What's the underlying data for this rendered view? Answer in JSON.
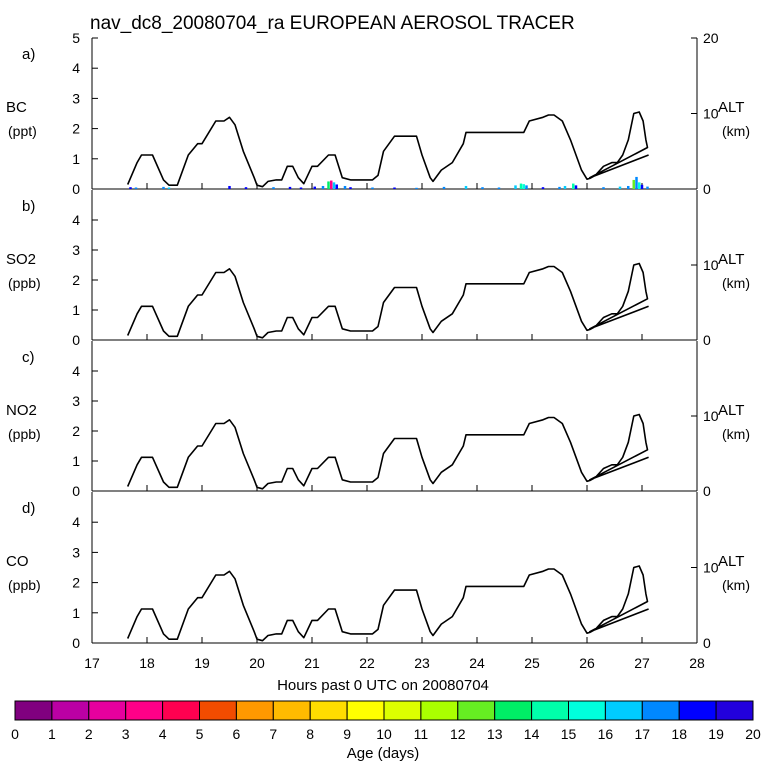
{
  "title": "nav_dc8_20080704_ra EUROPEAN AEROSOL TRACER",
  "x_axis": {
    "label": "Hours past 0 UTC on 20080704",
    "range": [
      17,
      28
    ],
    "ticks": [
      "17",
      "18",
      "19",
      "20",
      "21",
      "22",
      "23",
      "24",
      "25",
      "26",
      "27",
      "28"
    ]
  },
  "right_axis": {
    "label_top": "ALT",
    "label_bottom": "(km)",
    "range": [
      0,
      20
    ],
    "ticks": [
      "0",
      "10",
      "20"
    ]
  },
  "panels": [
    {
      "letter": "a)",
      "species": "BC",
      "units": "(ppt)",
      "left_ticks": [
        "0",
        "1",
        "2",
        "3",
        "4",
        "5"
      ],
      "right_ticks": [
        "0",
        "10",
        "20"
      ]
    },
    {
      "letter": "b)",
      "species": "SO2",
      "units": "(ppb)",
      "left_ticks": [
        "0",
        "1",
        "2",
        "3",
        "4"
      ],
      "right_ticks": [
        "0",
        "10"
      ]
    },
    {
      "letter": "c)",
      "species": "NO2",
      "units": "(ppb)",
      "left_ticks": [
        "0",
        "1",
        "2",
        "3",
        "4"
      ],
      "right_ticks": [
        "0",
        "10"
      ]
    },
    {
      "letter": "d)",
      "species": "CO",
      "units": "(ppb)",
      "left_ticks": [
        "0",
        "1",
        "2",
        "3",
        "4"
      ],
      "right_ticks": [
        "0",
        "10"
      ]
    }
  ],
  "colorbar": {
    "label": "Age (days)",
    "ticks": [
      "0",
      "1",
      "2",
      "3",
      "4",
      "5",
      "6",
      "7",
      "8",
      "9",
      "10",
      "11",
      "12",
      "13",
      "14",
      "15",
      "16",
      "17",
      "18",
      "19",
      "20"
    ],
    "colors": [
      "#80007f",
      "#bb00a4",
      "#e6009e",
      "#ff0088",
      "#ff0050",
      "#f24c00",
      "#ff9900",
      "#ffbb00",
      "#ffdd00",
      "#ffff00",
      "#ddff00",
      "#aaff00",
      "#66ee22",
      "#00ee66",
      "#00ffaa",
      "#00ffdd",
      "#00ccff",
      "#0088ff",
      "#0000ff",
      "#2200dd"
    ]
  },
  "chart_data": {
    "type": "line",
    "title": "nav_dc8_20080704_ra EUROPEAN AEROSOL TRACER",
    "xlabel": "Hours past 0 UTC on 20080704",
    "xlim": [
      17,
      28
    ],
    "series": [
      {
        "name": "ALT (km) flight altitude",
        "axis": "right",
        "ylim": [
          0,
          20
        ],
        "x": [
          17.65,
          17.82,
          17.9,
          18.1,
          18.3,
          18.4,
          18.55,
          18.75,
          18.92,
          19.0,
          19.25,
          19.4,
          19.5,
          19.6,
          19.75,
          19.95,
          20.0,
          20.1,
          20.2,
          20.35,
          20.45,
          20.55,
          20.65,
          20.75,
          20.85,
          21.0,
          21.1,
          21.3,
          21.42,
          21.55,
          21.7,
          21.9,
          22.1,
          22.2,
          22.3,
          22.5,
          22.6,
          22.9,
          23.0,
          23.15,
          23.2,
          23.35,
          23.55,
          23.75,
          23.8,
          24.25,
          24.85,
          24.95,
          25.2,
          25.3,
          25.4,
          25.55,
          25.7,
          25.9,
          26.0,
          26.05,
          26.15,
          26.3,
          26.45,
          26.55,
          26.65,
          26.75,
          26.85,
          26.95,
          27.02,
          27.07,
          27.1,
          26.05,
          27.12
        ],
        "y": [
          0.6,
          3.5,
          4.5,
          4.5,
          1.2,
          0.5,
          0.5,
          4.5,
          6.0,
          6.0,
          9.0,
          9.0,
          9.5,
          8.5,
          5.0,
          1.5,
          0.5,
          0.3,
          1.0,
          1.2,
          1.2,
          3.0,
          3.0,
          1.5,
          0.7,
          3.0,
          3.0,
          4.5,
          4.5,
          1.5,
          1.2,
          1.2,
          1.2,
          1.8,
          5.0,
          7.0,
          7.0,
          7.0,
          4.5,
          1.5,
          1.0,
          2.5,
          3.5,
          6.0,
          7.5,
          7.5,
          7.5,
          9.0,
          9.5,
          9.8,
          9.8,
          9.0,
          6.5,
          2.5,
          1.3,
          1.4,
          1.8,
          3.0,
          3.5,
          3.5,
          4.5,
          6.5,
          10.0,
          10.2,
          9.0,
          6.5,
          5.5,
          1.5,
          4.5
        ]
      }
    ],
    "panels": [
      {
        "name": "BC",
        "ylabel": "BC (ppt)",
        "ylim": [
          0,
          5
        ],
        "right_ylim": [
          0,
          20
        ]
      },
      {
        "name": "SO2",
        "ylabel": "SO2 (ppb)",
        "ylim": [
          0,
          5
        ],
        "right_ylim": [
          0,
          20
        ]
      },
      {
        "name": "NO2",
        "ylabel": "NO2 (ppb)",
        "ylim": [
          0,
          5
        ],
        "right_ylim": [
          0,
          20
        ]
      },
      {
        "name": "CO",
        "ylabel": "CO (ppb)",
        "ylim": [
          0,
          5
        ],
        "right_ylim": [
          0,
          20
        ]
      }
    ],
    "tracer_bars": [
      {
        "x": 17.7,
        "value": 0.06,
        "age_days": 18
      },
      {
        "x": 17.8,
        "value": 0.05,
        "age_days": 17
      },
      {
        "x": 18.3,
        "value": 0.07,
        "age_days": 17
      },
      {
        "x": 18.4,
        "value": 0.05,
        "age_days": 16
      },
      {
        "x": 19.5,
        "value": 0.1,
        "age_days": 18
      },
      {
        "x": 19.8,
        "value": 0.06,
        "age_days": 18
      },
      {
        "x": 20.3,
        "value": 0.06,
        "age_days": 17
      },
      {
        "x": 20.6,
        "value": 0.07,
        "age_days": 18
      },
      {
        "x": 20.8,
        "value": 0.05,
        "age_days": 18
      },
      {
        "x": 21.05,
        "value": 0.08,
        "age_days": 18
      },
      {
        "x": 21.2,
        "value": 0.1,
        "age_days": 17
      },
      {
        "x": 21.3,
        "value": 0.25,
        "age_days": 13
      },
      {
        "x": 21.35,
        "value": 0.28,
        "age_days": 3
      },
      {
        "x": 21.4,
        "value": 0.22,
        "age_days": 16
      },
      {
        "x": 21.45,
        "value": 0.15,
        "age_days": 18
      },
      {
        "x": 21.6,
        "value": 0.1,
        "age_days": 17
      },
      {
        "x": 21.7,
        "value": 0.06,
        "age_days": 18
      },
      {
        "x": 22.1,
        "value": 0.05,
        "age_days": 17
      },
      {
        "x": 22.5,
        "value": 0.05,
        "age_days": 18
      },
      {
        "x": 22.9,
        "value": 0.04,
        "age_days": 17
      },
      {
        "x": 23.4,
        "value": 0.07,
        "age_days": 17
      },
      {
        "x": 23.8,
        "value": 0.1,
        "age_days": 16
      },
      {
        "x": 24.1,
        "value": 0.06,
        "age_days": 17
      },
      {
        "x": 24.4,
        "value": 0.05,
        "age_days": 17
      },
      {
        "x": 24.7,
        "value": 0.12,
        "age_days": 16
      },
      {
        "x": 24.8,
        "value": 0.18,
        "age_days": 14
      },
      {
        "x": 24.85,
        "value": 0.16,
        "age_days": 15
      },
      {
        "x": 24.9,
        "value": 0.12,
        "age_days": 17
      },
      {
        "x": 25.2,
        "value": 0.06,
        "age_days": 18
      },
      {
        "x": 25.5,
        "value": 0.07,
        "age_days": 17
      },
      {
        "x": 25.6,
        "value": 0.1,
        "age_days": 16
      },
      {
        "x": 25.75,
        "value": 0.18,
        "age_days": 14
      },
      {
        "x": 25.8,
        "value": 0.12,
        "age_days": 18
      },
      {
        "x": 26.3,
        "value": 0.06,
        "age_days": 17
      },
      {
        "x": 26.6,
        "value": 0.08,
        "age_days": 16
      },
      {
        "x": 26.75,
        "value": 0.1,
        "age_days": 17
      },
      {
        "x": 26.85,
        "value": 0.3,
        "age_days": 12
      },
      {
        "x": 26.9,
        "value": 0.4,
        "age_days": 17
      },
      {
        "x": 26.95,
        "value": 0.22,
        "age_days": 15
      },
      {
        "x": 27.0,
        "value": 0.14,
        "age_days": 18
      },
      {
        "x": 27.1,
        "value": 0.08,
        "age_days": 17
      }
    ]
  }
}
